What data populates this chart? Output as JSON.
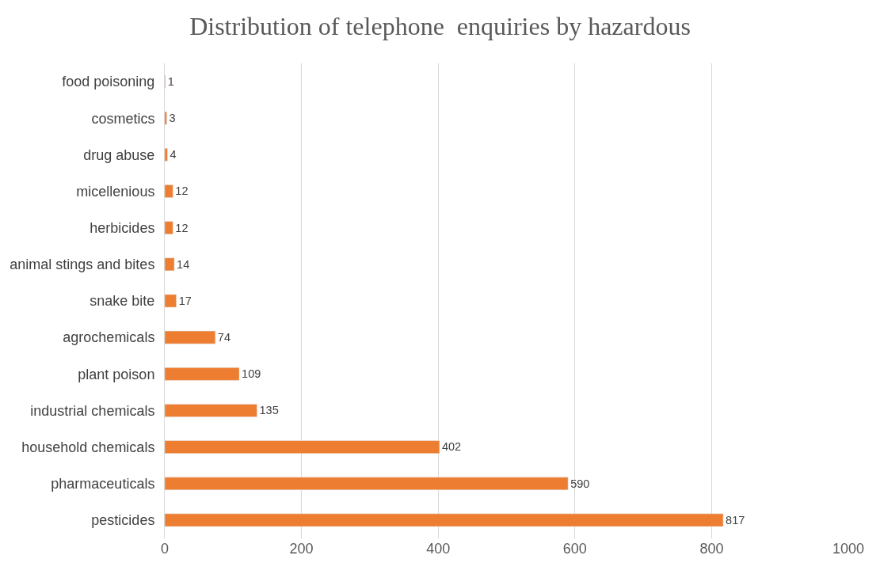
{
  "chart_data": {
    "type": "bar",
    "orientation": "horizontal",
    "title": "Distribution of telephone  enquiries by hazardous",
    "categories": [
      "food poisoning",
      "cosmetics",
      "drug abuse",
      "micellenious",
      "herbicides",
      "animal stings and bites",
      "snake bite",
      "agrochemicals",
      "plant poison",
      "industrial chemicals",
      "household chemicals",
      "pharmaceuticals",
      "pesticides"
    ],
    "values": [
      1,
      3,
      4,
      12,
      12,
      14,
      17,
      74,
      109,
      135,
      402,
      590,
      817
    ],
    "color": "#ed7d31",
    "xlim": [
      0,
      1000
    ],
    "xticks": [
      0,
      200,
      400,
      600,
      800,
      1000
    ],
    "grid": "x",
    "data_labels": true,
    "legend": false
  }
}
